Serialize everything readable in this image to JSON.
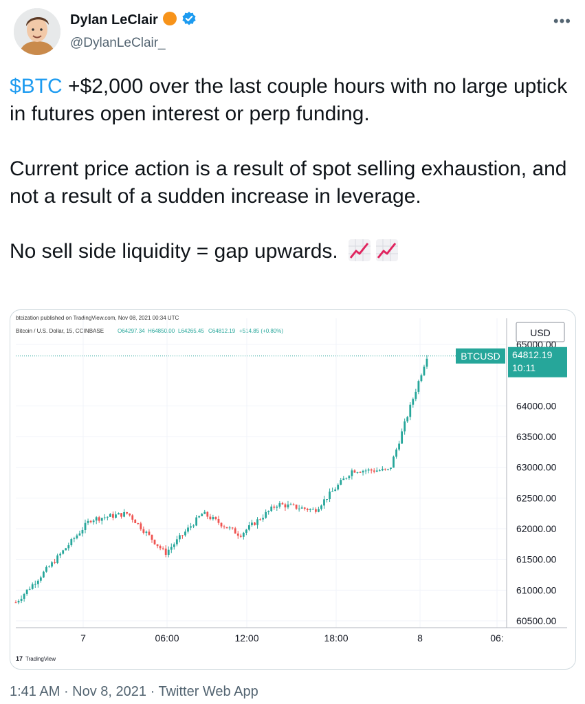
{
  "author": {
    "name": "Dylan LeClair",
    "handle": "@DylanLeClair_",
    "badge_color": "#f7931a",
    "verified_color": "#1d9bf0"
  },
  "more_icon": "more-options-icon",
  "tweet": {
    "cashtag": "$BTC",
    "line1_rest": " +$2,000 over the last couple hours with no large uptick in futures open interest or perp funding.",
    "paragraph2": "Current price action is a result of spot selling exhaustion, and not a result of a sudden increase in leverage.",
    "paragraph3": "No sell side liquidity = gap upwards.",
    "emoji": [
      "chart-increasing-icon",
      "chart-increasing-icon"
    ]
  },
  "chart_data": {
    "type": "candlestick",
    "publisher": "btcization published on TradingView.com, Nov 08, 2021 00:34 UTC",
    "symbol_line": "Bitcoin / U.S. Dollar, 15, COINBASE",
    "ohlc": {
      "o": "O64297.34",
      "h": "H64850.00",
      "l": "L64265.45",
      "c": "C64812.19",
      "chg": "+514.85 (+0.80%)"
    },
    "currency": "USD",
    "last_label": "BTCUSD",
    "last_price": "64812.19",
    "countdown": "10:11",
    "y_ticks": [
      "65000.00",
      "64000.00",
      "63500.00",
      "63000.00",
      "62500.00",
      "62000.00",
      "61500.00",
      "61000.00",
      "60500.00"
    ],
    "x_ticks": [
      "7",
      "06:00",
      "12:00",
      "18:00",
      "8",
      "06:"
    ],
    "ylim": [
      60500,
      65000
    ],
    "up_color": "#26a69a",
    "down_color": "#ef5350",
    "grid": true,
    "watermark": "TradingView",
    "key_points": [
      {
        "t": "start",
        "price": 60800
      },
      {
        "t": "7",
        "price": 61450
      },
      {
        "t": "7+",
        "price": 62150
      },
      {
        "t": "04:00",
        "price": 62250
      },
      {
        "t": "09:00",
        "price": 61600
      },
      {
        "t": "10:00",
        "price": 62250
      },
      {
        "t": "14:00",
        "price": 61900
      },
      {
        "t": "17:00",
        "price": 62400
      },
      {
        "t": "20:00",
        "price": 62300
      },
      {
        "t": "21:30",
        "price": 62950
      },
      {
        "t": "23:30",
        "price": 62950
      },
      {
        "t": "8",
        "price": 64812
      }
    ]
  },
  "footer": {
    "time": "1:41 AM",
    "date": "Nov 8, 2021",
    "source": "Twitter Web App",
    "sep": " · "
  }
}
